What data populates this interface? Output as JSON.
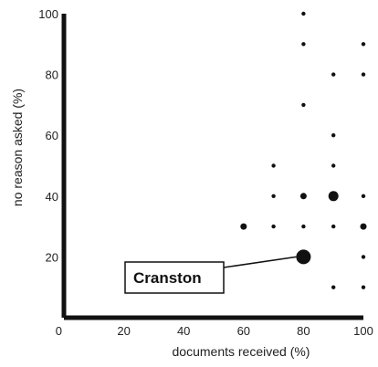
{
  "chart_data": {
    "type": "scatter",
    "title": "",
    "xlabel": "documents received (%)",
    "ylabel": "no reason asked (%)",
    "xlim": [
      0,
      100
    ],
    "ylim": [
      0,
      100
    ],
    "x_ticks": [
      0,
      20,
      40,
      60,
      80,
      100
    ],
    "y_ticks": [
      20,
      40,
      60,
      80,
      100
    ],
    "grid": false,
    "point_size_encodes": "count",
    "points": [
      {
        "x": 80,
        "y": 100,
        "size": 1
      },
      {
        "x": 80,
        "y": 90,
        "size": 1
      },
      {
        "x": 100,
        "y": 90,
        "size": 1
      },
      {
        "x": 90,
        "y": 80,
        "size": 1
      },
      {
        "x": 100,
        "y": 80,
        "size": 1
      },
      {
        "x": 80,
        "y": 70,
        "size": 1
      },
      {
        "x": 90,
        "y": 60,
        "size": 1
      },
      {
        "x": 70,
        "y": 50,
        "size": 1
      },
      {
        "x": 90,
        "y": 50,
        "size": 1
      },
      {
        "x": 70,
        "y": 40,
        "size": 1
      },
      {
        "x": 80,
        "y": 40,
        "size": 2
      },
      {
        "x": 90,
        "y": 40,
        "size": 3
      },
      {
        "x": 100,
        "y": 40,
        "size": 1
      },
      {
        "x": 60,
        "y": 30,
        "size": 2
      },
      {
        "x": 70,
        "y": 30,
        "size": 1
      },
      {
        "x": 80,
        "y": 30,
        "size": 1
      },
      {
        "x": 90,
        "y": 30,
        "size": 1
      },
      {
        "x": 100,
        "y": 30,
        "size": 2
      },
      {
        "x": 80,
        "y": 20,
        "size": 5,
        "label": "Cranston"
      },
      {
        "x": 100,
        "y": 20,
        "size": 1
      },
      {
        "x": 90,
        "y": 10,
        "size": 1
      },
      {
        "x": 100,
        "y": 10,
        "size": 1
      },
      {
        "x": 70,
        "y": 0,
        "size": 1
      }
    ],
    "annotations": [
      {
        "text": "Cranston",
        "x": 80,
        "y": 20
      }
    ]
  }
}
